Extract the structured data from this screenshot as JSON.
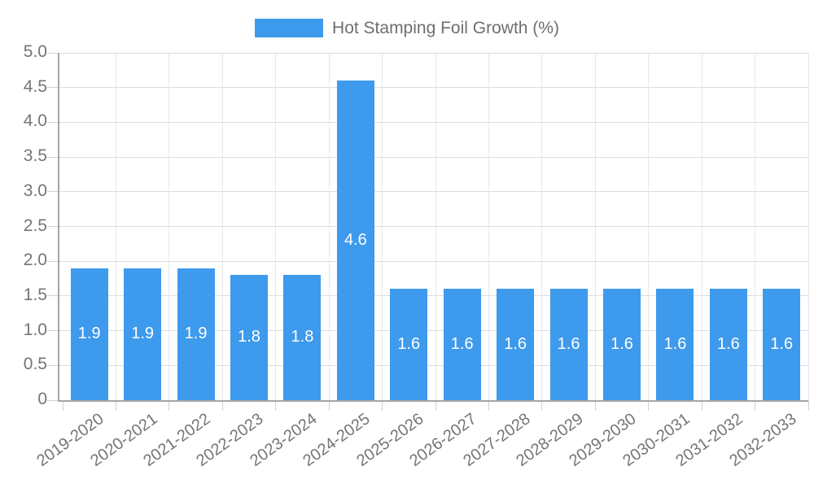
{
  "chart_data": {
    "type": "bar",
    "title": "Hot Stamping Foil Growth (%)",
    "categories": [
      "2019-2020",
      "2020-2021",
      "2021-2022",
      "2022-2023",
      "2023-2024",
      "2024-2025",
      "2025-2026",
      "2026-2027",
      "2027-2028",
      "2028-2029",
      "2029-2030",
      "2030-2031",
      "2031-2032",
      "2032-2033"
    ],
    "values": [
      1.9,
      1.9,
      1.9,
      1.8,
      1.8,
      4.6,
      1.6,
      1.6,
      1.6,
      1.6,
      1.6,
      1.6,
      1.6,
      1.6
    ],
    "bar_labels": [
      "1.9",
      "1.9",
      "1.9",
      "1.8",
      "1.8",
      "4.6",
      "1.6",
      "1.6",
      "1.6",
      "1.6",
      "1.6",
      "1.6",
      "1.6",
      "1.6"
    ],
    "xlabel": "",
    "ylabel": "",
    "ylim": [
      0,
      5
    ],
    "ytick_labels": [
      "0",
      "0.5",
      "1.0",
      "1.5",
      "2.0",
      "2.5",
      "3.0",
      "3.5",
      "4.0",
      "4.5",
      "5.0"
    ],
    "grid": "on",
    "legend_position": "top-center",
    "colors": {
      "bar": "#3d9aec",
      "bar_label_text": "#ffffff",
      "tick_text": "#757575",
      "legend_text": "#6e6e6e",
      "grid_horizontal": "#dcdcdc",
      "grid_vertical": "#e7e7e7",
      "axis_line": "#a6a6a6",
      "tick_mark": "#d2d2d2"
    }
  }
}
